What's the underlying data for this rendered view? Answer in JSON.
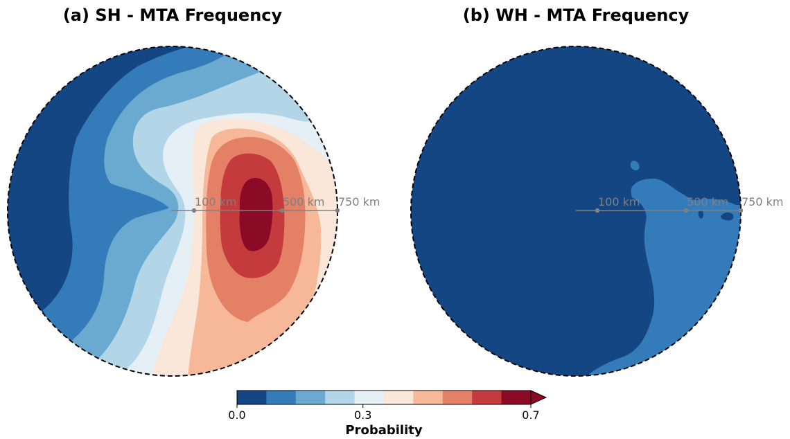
{
  "panels": {
    "a": {
      "title": "(a) SH - MTA Frequency"
    },
    "b": {
      "title": "(b) WH - MTA Frequency"
    }
  },
  "range_rings": [
    "100 km",
    "500 km",
    "750 km"
  ],
  "colorbar": {
    "label": "Probability",
    "ticks": [
      "0.0",
      "0.3",
      "0.7"
    ],
    "levels": [
      0.0,
      0.07,
      0.14,
      0.21,
      0.28,
      0.35,
      0.42,
      0.49,
      0.56,
      0.63,
      0.7
    ],
    "colors": [
      "#144683",
      "#337cb9",
      "#6aaad1",
      "#b2d5e7",
      "#e5eff6",
      "#fbe6da",
      "#f6b899",
      "#e48066",
      "#c53a3c",
      "#8b0a25"
    ],
    "extend": "max"
  },
  "chart_data": [
    {
      "type": "heatmap",
      "title": "(a) SH - MTA Frequency",
      "value_range": [
        0.0,
        0.7
      ],
      "range_markers_km": [
        100,
        500,
        750
      ],
      "description_levels": "probability increases toward the east of center, peaking above 0.63 between 100 and 500 km east"
    },
    {
      "type": "heatmap",
      "title": "(b) WH - MTA Frequency",
      "value_range": [
        0.0,
        0.7
      ],
      "range_markers_km": [
        100,
        500,
        750
      ],
      "description_levels": "probability mostly below 0.07, with a 0.07-0.14 region in the east and south-east"
    }
  ]
}
